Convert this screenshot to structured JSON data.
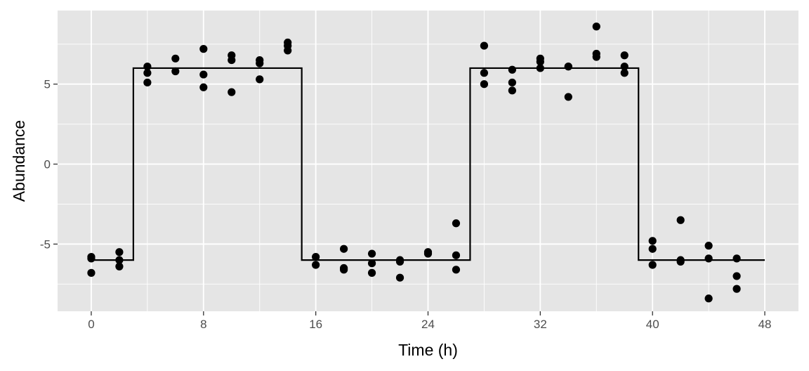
{
  "chart_data": {
    "type": "scatter",
    "title": "",
    "xlabel": "Time (h)",
    "ylabel": "Abundance",
    "xlim": [
      -2.4,
      50.4
    ],
    "ylim": [
      -9.2,
      9.6
    ],
    "x_ticks": [
      0,
      8,
      16,
      24,
      32,
      40,
      48
    ],
    "x_tick_labels": [
      "0",
      "8",
      "16",
      "24",
      "32",
      "40",
      "48"
    ],
    "y_ticks": [
      5,
      0,
      -5
    ],
    "y_tick_labels": [
      "5",
      "0",
      "-5"
    ],
    "grid": true,
    "legend": "none",
    "colors": {
      "panel": "#e5e5e5",
      "grid": "#ffffff",
      "points": "#000000",
      "line": "#000000",
      "tick_text": "#4d4d4d",
      "tick_mark": "#333333"
    },
    "series": [
      {
        "type": "scatter",
        "x": [
          0,
          0,
          0,
          2,
          2,
          2,
          4,
          4,
          4,
          6,
          6,
          8,
          8,
          8,
          10,
          10,
          10,
          12,
          12,
          12,
          14,
          14,
          14,
          16,
          16,
          18,
          18,
          18,
          20,
          20,
          20,
          22,
          22,
          22,
          24,
          24,
          26,
          26,
          26,
          28,
          28,
          28,
          30,
          30,
          30,
          32,
          32,
          32,
          34,
          34,
          34,
          36,
          36,
          36,
          38,
          38,
          38,
          40,
          40,
          40,
          42,
          42,
          42,
          44,
          44,
          44,
          46,
          46,
          46
        ],
        "y": [
          -5.8,
          -5.9,
          -6.8,
          -5.5,
          -6.0,
          -6.4,
          6.1,
          5.7,
          5.1,
          6.6,
          5.8,
          7.2,
          5.6,
          4.8,
          6.8,
          6.5,
          4.5,
          6.5,
          6.3,
          5.3,
          7.6,
          7.4,
          7.1,
          -5.8,
          -6.3,
          -5.3,
          -6.6,
          -6.5,
          -5.6,
          -6.2,
          -6.8,
          -6.0,
          -6.1,
          -7.1,
          -5.5,
          -5.6,
          -3.7,
          -5.7,
          -6.6,
          7.4,
          5.7,
          5.0,
          5.9,
          5.1,
          4.6,
          6.6,
          6.4,
          6.0,
          6.1,
          6.1,
          4.2,
          8.6,
          6.9,
          6.7,
          6.8,
          6.1,
          5.7,
          -4.8,
          -5.3,
          -6.3,
          -3.5,
          -6.0,
          -6.1,
          -5.1,
          -5.9,
          -8.4,
          -5.9,
          -7.0,
          -7.8
        ]
      },
      {
        "type": "step",
        "x": [
          0,
          3,
          3,
          15,
          15,
          27,
          27,
          39,
          39,
          48
        ],
        "y": [
          -6,
          -6,
          6,
          6,
          -6,
          -6,
          6,
          6,
          -6,
          -6
        ]
      }
    ]
  }
}
